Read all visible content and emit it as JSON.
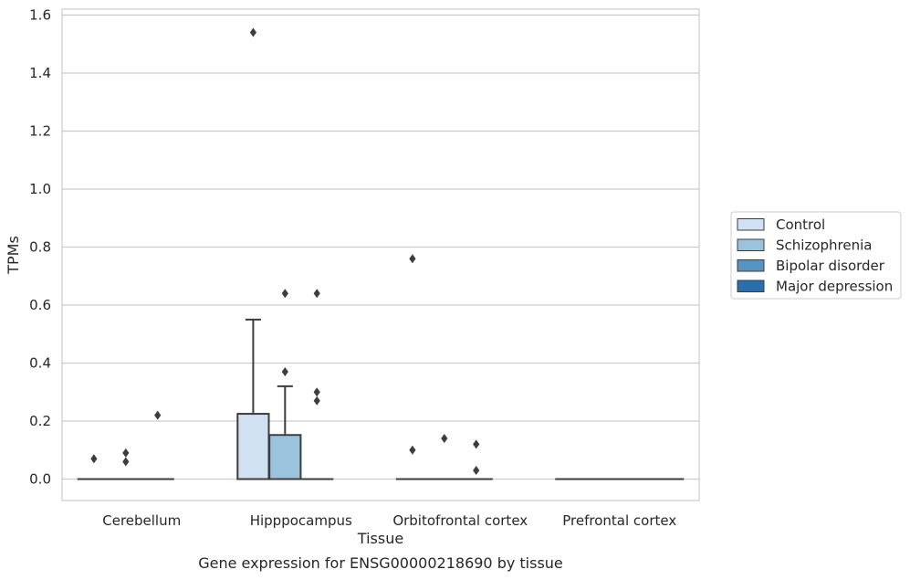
{
  "caption": "Gene expression for ENSG00000218690 by tissue",
  "chart_data": {
    "type": "boxplot",
    "xlabel": "Tissue",
    "ylabel": "TPMs",
    "ylim": [
      -0.075,
      1.62
    ],
    "yticks": [
      0.0,
      0.2,
      0.4,
      0.6,
      0.8,
      1.0,
      1.2,
      1.4,
      1.6
    ],
    "ytick_labels": [
      "0.0",
      "0.2",
      "0.4",
      "0.6",
      "0.8",
      "1.0",
      "1.2",
      "1.4",
      "1.6"
    ],
    "categories": [
      "Cerebellum",
      "Hipppocampus",
      "Orbitofrontal cortex",
      "Prefrontal cortex"
    ],
    "grid": "horizontal",
    "legend_position": "right",
    "series": [
      {
        "name": "Control",
        "color": "#d0e1f2",
        "boxes": [
          {
            "q1": 0,
            "median": 0,
            "q3": 0,
            "whislo": 0,
            "whishi": 0,
            "fliers": [
              0.07
            ]
          },
          {
            "q1": 0,
            "median": 0,
            "q3": 0.225,
            "whislo": 0,
            "whishi": 0.55,
            "fliers": [
              1.54
            ]
          },
          {
            "q1": 0,
            "median": 0,
            "q3": 0,
            "whislo": 0,
            "whishi": 0,
            "fliers": [
              0.76,
              0.1
            ]
          },
          {
            "q1": 0,
            "median": 0,
            "q3": 0,
            "whislo": 0,
            "whishi": 0,
            "fliers": []
          }
        ]
      },
      {
        "name": "Schizophrenia",
        "color": "#9ac4de",
        "boxes": [
          {
            "q1": 0,
            "median": 0,
            "q3": 0,
            "whislo": 0,
            "whishi": 0,
            "fliers": [
              0.09,
              0.06
            ]
          },
          {
            "q1": 0,
            "median": 0,
            "q3": 0.152,
            "whislo": 0,
            "whishi": 0.32,
            "fliers": [
              0.64,
              0.37
            ]
          },
          {
            "q1": 0,
            "median": 0,
            "q3": 0,
            "whislo": 0,
            "whishi": 0,
            "fliers": [
              0.14
            ]
          },
          {
            "q1": 0,
            "median": 0,
            "q3": 0,
            "whislo": 0,
            "whishi": 0,
            "fliers": []
          }
        ]
      },
      {
        "name": "Bipolar disorder",
        "color": "#5495c6",
        "boxes": [
          {
            "q1": 0,
            "median": 0,
            "q3": 0,
            "whislo": 0,
            "whishi": 0,
            "fliers": [
              0.22
            ]
          },
          {
            "q1": 0,
            "median": 0,
            "q3": 0,
            "whislo": 0,
            "whishi": 0,
            "fliers": [
              0.64,
              0.3,
              0.27
            ]
          },
          {
            "q1": 0,
            "median": 0,
            "q3": 0,
            "whislo": 0,
            "whishi": 0,
            "fliers": [
              0.12,
              0.03
            ]
          },
          {
            "q1": 0,
            "median": 0,
            "q3": 0,
            "whislo": 0,
            "whishi": 0,
            "fliers": []
          }
        ]
      },
      {
        "name": "Major depression",
        "color": "#2a6ead",
        "boxes": [
          null,
          null,
          null,
          {
            "q1": 0,
            "median": 0,
            "q3": 0,
            "whislo": 0,
            "whishi": 0,
            "fliers": []
          }
        ]
      }
    ]
  }
}
